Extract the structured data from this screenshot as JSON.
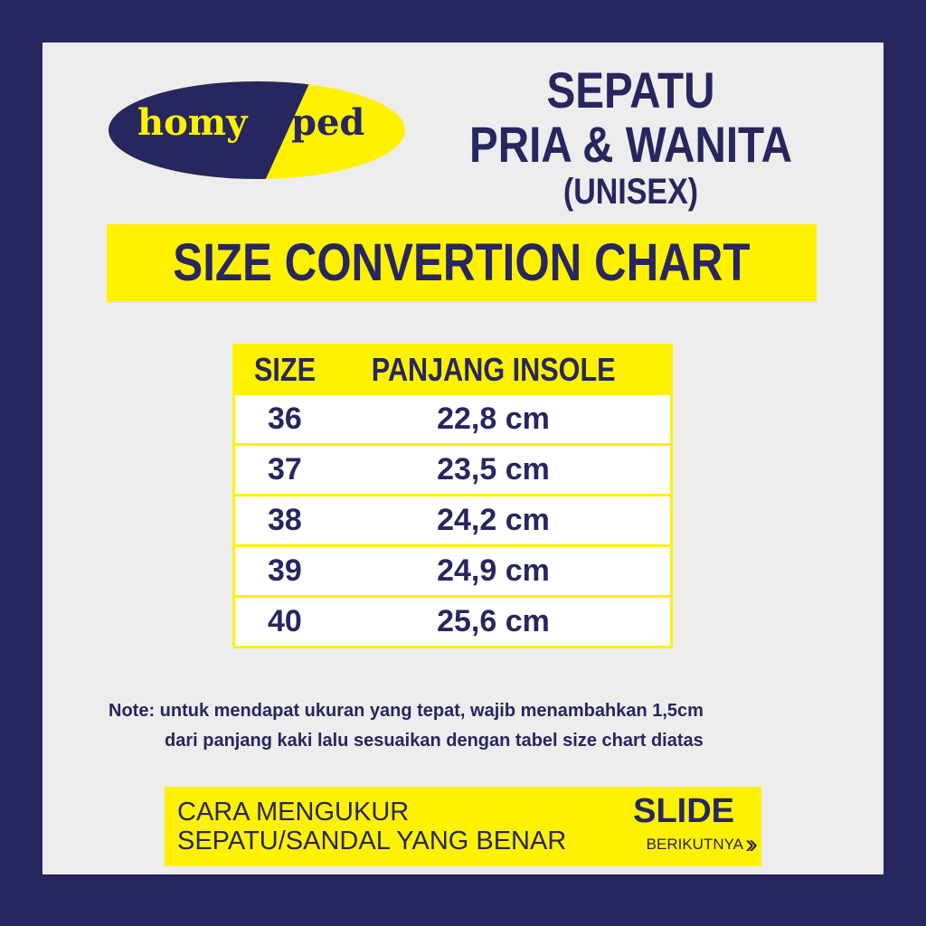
{
  "brand": {
    "logo_left": "homy",
    "logo_right": "ped"
  },
  "title": {
    "line1": "SEPATU",
    "line2": "PRIA & WANITA",
    "line3": "(UNISEX)"
  },
  "banner": "SIZE CONVERTION CHART",
  "table": {
    "headers": [
      "SIZE",
      "PANJANG INSOLE"
    ],
    "rows": [
      {
        "size": "36",
        "insole": "22,8 cm"
      },
      {
        "size": "37",
        "insole": "23,5 cm"
      },
      {
        "size": "38",
        "insole": "24,2 cm"
      },
      {
        "size": "39",
        "insole": "24,9 cm"
      },
      {
        "size": "40",
        "insole": "25,6 cm"
      }
    ]
  },
  "note": {
    "line1": "Note: untuk mendapat ukuran yang tepat, wajib menambahkan 1,5cm",
    "line2": "dari panjang kaki lalu sesuaikan dengan tabel size chart diatas"
  },
  "footer": {
    "line1": "CARA MENGUKUR",
    "line2": "SEPATU/SANDAL YANG BENAR",
    "slide": "SLIDE",
    "next": "BERIKUTNYA",
    "chevron_icon": "double-chevron-right"
  },
  "colors": {
    "navy": "#27265f",
    "yellow": "#fff200",
    "background": "#ededed"
  }
}
